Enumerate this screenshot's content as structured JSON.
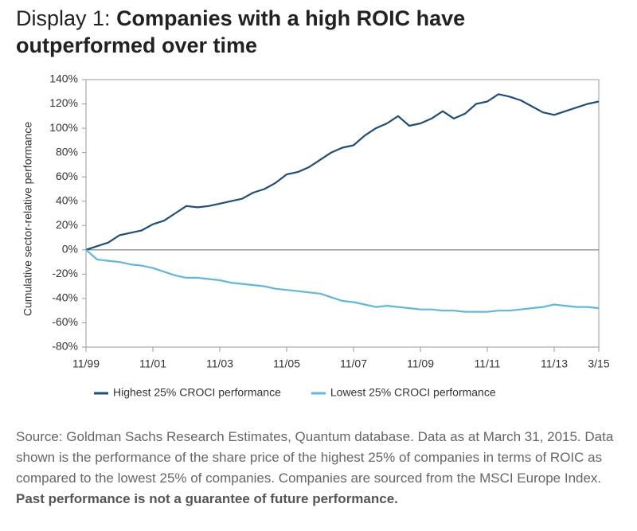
{
  "chart_data": {
    "type": "line",
    "title_prefix": "Display 1:",
    "title": "Companies with a high ROIC have outperformed over time",
    "ylabel": "Cumulative sector-relative performance",
    "x": [
      "11/99",
      "3/00",
      "7/00",
      "11/00",
      "3/01",
      "7/01",
      "11/01",
      "3/02",
      "7/02",
      "11/02",
      "3/03",
      "7/03",
      "11/03",
      "3/04",
      "7/04",
      "11/04",
      "3/05",
      "7/05",
      "11/05",
      "3/06",
      "7/06",
      "11/06",
      "3/07",
      "7/07",
      "11/07",
      "3/08",
      "7/08",
      "11/08",
      "3/09",
      "7/09",
      "11/09",
      "3/10",
      "7/10",
      "11/10",
      "3/11",
      "7/11",
      "11/11",
      "3/12",
      "7/12",
      "11/12",
      "3/13",
      "7/13",
      "11/13",
      "3/14",
      "7/14",
      "11/14",
      "3/15"
    ],
    "xlim": [
      "11/99",
      "3/15"
    ],
    "xticks": [
      "11/99",
      "11/01",
      "11/03",
      "11/05",
      "11/07",
      "11/09",
      "11/11",
      "11/13",
      "3/15"
    ],
    "ylim": [
      -80,
      140
    ],
    "yticks": [
      {
        "value": -80,
        "label": "-80%"
      },
      {
        "value": -60,
        "label": "-60%"
      },
      {
        "value": -40,
        "label": "-40%"
      },
      {
        "value": -20,
        "label": "-20%"
      },
      {
        "value": 0,
        "label": "0%"
      },
      {
        "value": 20,
        "label": "20%"
      },
      {
        "value": 40,
        "label": "40%"
      },
      {
        "value": 60,
        "label": "60%"
      },
      {
        "value": 80,
        "label": "80%"
      },
      {
        "value": 100,
        "label": "100%"
      },
      {
        "value": 120,
        "label": "120%"
      },
      {
        "value": 140,
        "label": "140%"
      }
    ],
    "legend": "bottom",
    "series": [
      {
        "name": "Highest 25% CROCI performance",
        "color": "#1d4f7c",
        "values": [
          0,
          3,
          6,
          12,
          14,
          16,
          21,
          24,
          30,
          36,
          35,
          36,
          38,
          40,
          42,
          47,
          50,
          55,
          62,
          64,
          68,
          74,
          80,
          84,
          86,
          94,
          100,
          104,
          110,
          102,
          104,
          108,
          114,
          108,
          112,
          120,
          122,
          128,
          126,
          123,
          118,
          113,
          111,
          114,
          117,
          120,
          122
        ]
      },
      {
        "name": "Lowest 25% CROCI performance",
        "color": "#5cb8e2",
        "values": [
          0,
          -8,
          -9,
          -10,
          -12,
          -13,
          -15,
          -18,
          -21,
          -23,
          -23,
          -24,
          -25,
          -27,
          -28,
          -29,
          -30,
          -32,
          -33,
          -34,
          -35,
          -36,
          -39,
          -42,
          -43,
          -45,
          -47,
          -46,
          -47,
          -48,
          -49,
          -49,
          -50,
          -50,
          -51,
          -51,
          -51,
          -50,
          -50,
          -49,
          -48,
          -47,
          -45,
          -46,
          -47,
          -47,
          -48
        ]
      }
    ],
    "source": "Source: Goldman Sachs Research Estimates, Quantum database. Data as at March 31, 2015. Data shown is the performance of the share price of the highest 25% of companies in terms of ROIC as compared to the lowest 25% of companies. Companies are sourced from the MSCI Europe Index.",
    "source_bold": "Past performance is not a guarantee of future performance."
  }
}
